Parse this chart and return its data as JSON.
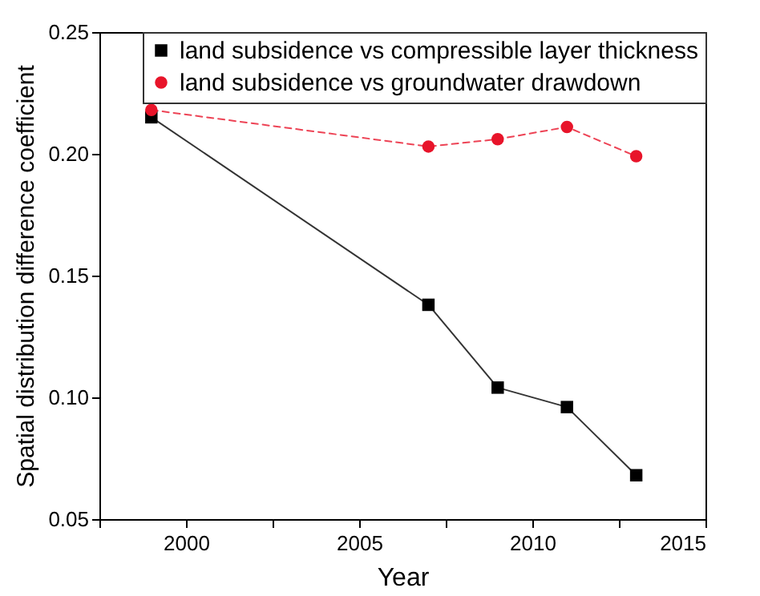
{
  "chart_data": {
    "type": "line",
    "xlabel": "Year",
    "ylabel": "Spatial distribution difference coefficient",
    "x": [
      1999,
      2007,
      2009,
      2011,
      2013
    ],
    "series": [
      {
        "name": "land subsidence vs compressible layer thickness",
        "color": "#000000",
        "marker": "square",
        "line_style": "solid",
        "values": [
          0.215,
          0.138,
          0.104,
          0.096,
          0.068
        ]
      },
      {
        "name": "land subsidence vs groundwater drawdown",
        "color": "#e8142a",
        "marker": "circle",
        "line_style": "dashed",
        "values": [
          0.218,
          0.203,
          0.206,
          0.211,
          0.199
        ]
      }
    ],
    "xlim": [
      1997.5,
      2015
    ],
    "xticks": [
      {
        "value": 1997.5,
        "label": null
      },
      2000,
      {
        "value": 2002.5,
        "label": null
      },
      2005,
      {
        "value": 2007.5,
        "label": null
      },
      2010,
      {
        "value": 2012.5,
        "label": null
      },
      2015
    ],
    "ylim": [
      0.05,
      0.25
    ],
    "yticks": [
      0.05,
      {
        "value": 0.1,
        "label": "0.10"
      },
      0.15,
      {
        "value": 0.2,
        "label": "0.20"
      },
      0.25
    ],
    "grid": false,
    "legend": "top right"
  }
}
